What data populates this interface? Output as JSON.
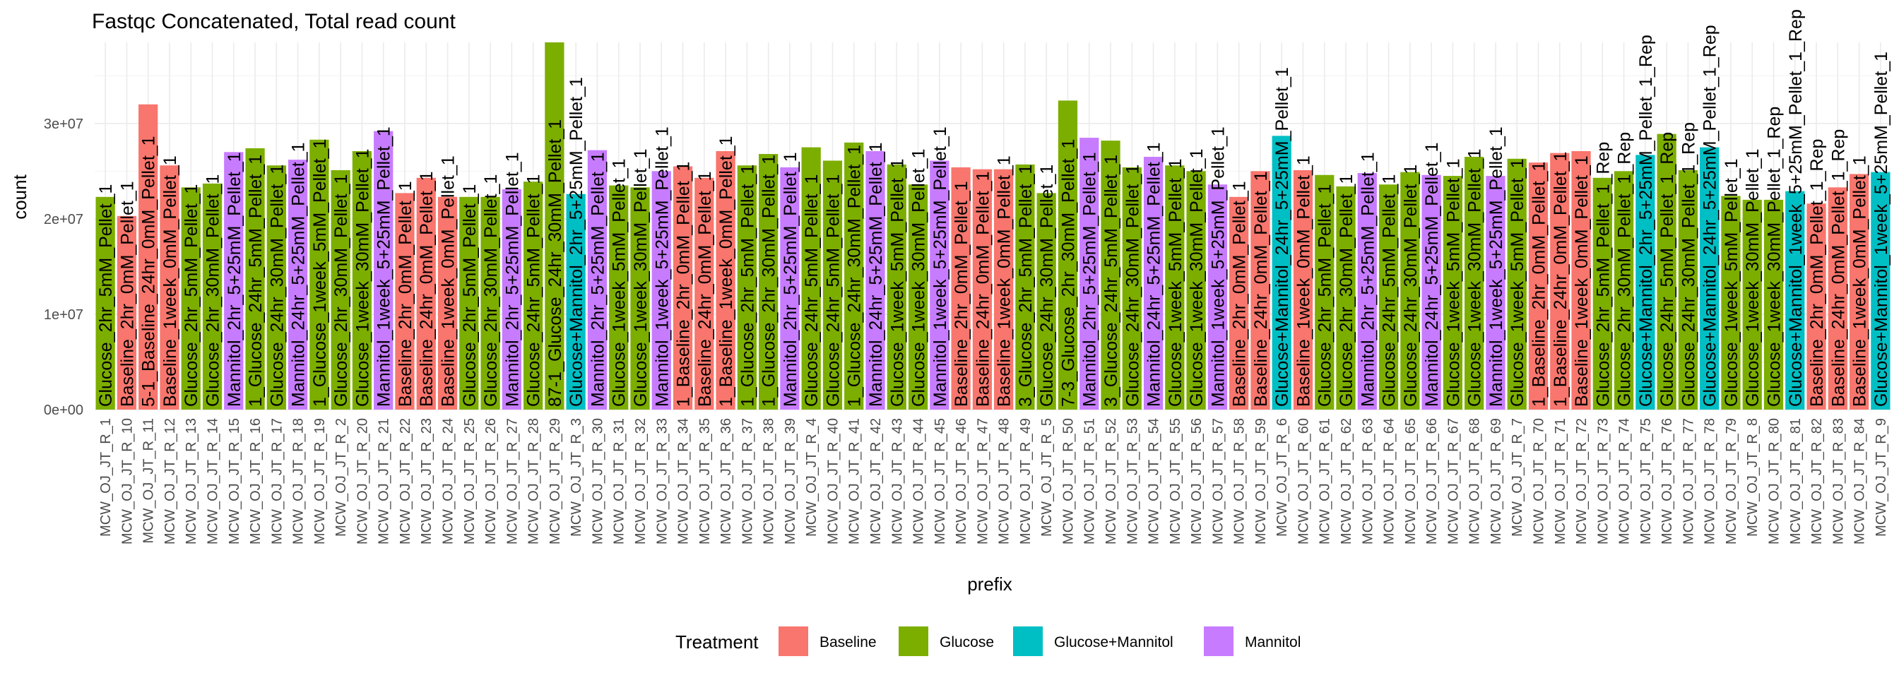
{
  "chart_data": {
    "type": "bar",
    "title": "Fastqc Concatenated, Total read count",
    "xlabel": "prefix",
    "ylabel": "count",
    "ylim": [
      0,
      38500000
    ],
    "yticks": [
      0,
      10000000,
      20000000,
      30000000
    ],
    "ytick_labels": [
      "0e+00",
      "1e+07",
      "2e+07",
      "3e+07"
    ],
    "legend": {
      "title": "Treatment",
      "position": "bottom",
      "entries": [
        {
          "name": "Baseline",
          "color": "#F8766D"
        },
        {
          "name": "Glucose",
          "color": "#7CAE00"
        },
        {
          "name": "Glucose+Mannitol",
          "color": "#00BFC4"
        },
        {
          "name": "Mannitol",
          "color": "#C77CFF"
        }
      ]
    },
    "bars": [
      {
        "x": "MCW_OJ_JT_R_1",
        "value": 22300000,
        "treatment": "Glucose",
        "label": "Glucose_2hr_5mM_Pellet_1"
      },
      {
        "x": "MCW_OJ_JT_R_10",
        "value": 20300000,
        "treatment": "Baseline",
        "label": "Baseline_2hr_0mM_Pellet_1"
      },
      {
        "x": "MCW_OJ_JT_R_11",
        "value": 32000000,
        "treatment": "Baseline",
        "label": "5-1_Baseline_24hr_0mM_Pellet_1"
      },
      {
        "x": "MCW_OJ_JT_R_12",
        "value": 25600000,
        "treatment": "Baseline",
        "label": "Baseline_1week_0mM_Pellet_1"
      },
      {
        "x": "MCW_OJ_JT_R_13",
        "value": 23300000,
        "treatment": "Glucose",
        "label": "Glucose_2hr_5mM_Pellet_1"
      },
      {
        "x": "MCW_OJ_JT_R_14",
        "value": 23700000,
        "treatment": "Glucose",
        "label": "Glucose_2hr_30mM_Pellet_1"
      },
      {
        "x": "MCW_OJ_JT_R_15",
        "value": 27000000,
        "treatment": "Mannitol",
        "label": "Mannitol_2hr_5+25mM_Pellet_1"
      },
      {
        "x": "MCW_OJ_JT_R_16",
        "value": 27400000,
        "treatment": "Glucose",
        "label": "1_Glucose_24hr_5mM_Pellet_1"
      },
      {
        "x": "MCW_OJ_JT_R_17",
        "value": 25600000,
        "treatment": "Glucose",
        "label": "Glucose_24hr_30mM_Pellet_1"
      },
      {
        "x": "MCW_OJ_JT_R_18",
        "value": 26200000,
        "treatment": "Mannitol",
        "label": "Mannitol_24hr_5+25mM_Pellet_1"
      },
      {
        "x": "MCW_OJ_JT_R_19",
        "value": 28300000,
        "treatment": "Glucose",
        "label": "1_Glucose_1week_5mM_Pellet_1"
      },
      {
        "x": "MCW_OJ_JT_R_2",
        "value": 25100000,
        "treatment": "Glucose",
        "label": "Glucose_2hr_30mM_Pellet_1"
      },
      {
        "x": "MCW_OJ_JT_R_20",
        "value": 27100000,
        "treatment": "Glucose",
        "label": "Glucose_1week_30mM_Pellet_1"
      },
      {
        "x": "MCW_OJ_JT_R_21",
        "value": 29200000,
        "treatment": "Mannitol",
        "label": "Mannitol_1week_5+25mM_Pellet_1"
      },
      {
        "x": "MCW_OJ_JT_R_22",
        "value": 22700000,
        "treatment": "Baseline",
        "label": "Baseline_2hr_0mM_Pellet_1"
      },
      {
        "x": "MCW_OJ_JT_R_23",
        "value": 24300000,
        "treatment": "Baseline",
        "label": "Baseline_24hr_0mM_Pellet_1"
      },
      {
        "x": "MCW_OJ_JT_R_24",
        "value": 22300000,
        "treatment": "Baseline",
        "label": "Baseline_1week_0mM_Pellet_1"
      },
      {
        "x": "MCW_OJ_JT_R_25",
        "value": 22300000,
        "treatment": "Glucose",
        "label": "Glucose_2hr_5mM_Pellet_1"
      },
      {
        "x": "MCW_OJ_JT_R_26",
        "value": 22300000,
        "treatment": "Glucose",
        "label": "Glucose_2hr_30mM_Pellet_1"
      },
      {
        "x": "MCW_OJ_JT_R_27",
        "value": 23100000,
        "treatment": "Mannitol",
        "label": "Mannitol_2hr_5+25mM_Pellet_1"
      },
      {
        "x": "MCW_OJ_JT_R_28",
        "value": 23900000,
        "treatment": "Glucose",
        "label": "Glucose_24hr_5mM_Pellet_1"
      },
      {
        "x": "MCW_OJ_JT_R_29",
        "value": 38500000,
        "treatment": "Glucose",
        "label": "87-1_Glucose_24hr_30mM_Pellet_1"
      },
      {
        "x": "MCW_OJ_JT_R_3",
        "value": 22600000,
        "treatment": "Glucose+Mannitol",
        "label": "Glucose+Mannitol_2hr_5+25mM_Pellet_1"
      },
      {
        "x": "MCW_OJ_JT_R_30",
        "value": 27200000,
        "treatment": "Mannitol",
        "label": "Mannitol_2hr_5+25mM_Pellet_1"
      },
      {
        "x": "MCW_OJ_JT_R_31",
        "value": 23500000,
        "treatment": "Glucose",
        "label": "Glucose_1week_5mM_Pellet_1"
      },
      {
        "x": "MCW_OJ_JT_R_32",
        "value": 23300000,
        "treatment": "Glucose",
        "label": "Glucose_1week_30mM_Pellet_1"
      },
      {
        "x": "MCW_OJ_JT_R_33",
        "value": 25000000,
        "treatment": "Mannitol",
        "label": "Mannitol_1week_5+25mM_Pellet_1"
      },
      {
        "x": "MCW_OJ_JT_R_34",
        "value": 25500000,
        "treatment": "Baseline",
        "label": "1_Baseline_2hr_0mM_Pellet_1"
      },
      {
        "x": "MCW_OJ_JT_R_35",
        "value": 24300000,
        "treatment": "Baseline",
        "label": "Baseline_24hr_0mM_Pellet_1"
      },
      {
        "x": "MCW_OJ_JT_R_36",
        "value": 27100000,
        "treatment": "Baseline",
        "label": "1_Baseline_1week_0mM_Pellet_1"
      },
      {
        "x": "MCW_OJ_JT_R_37",
        "value": 25600000,
        "treatment": "Glucose",
        "label": "1_Glucose_2hr_5mM_Pellet_1"
      },
      {
        "x": "MCW_OJ_JT_R_38",
        "value": 26800000,
        "treatment": "Glucose",
        "label": "1_Glucose_2hr_30mM_Pellet_1"
      },
      {
        "x": "MCW_OJ_JT_R_39",
        "value": 25400000,
        "treatment": "Mannitol",
        "label": "Mannitol_2hr_5+25mM_Pellet_1"
      },
      {
        "x": "MCW_OJ_JT_R_4",
        "value": 27500000,
        "treatment": "Glucose",
        "label": "Glucose_24hr_5mM_Pellet_1"
      },
      {
        "x": "MCW_OJ_JT_R_40",
        "value": 26100000,
        "treatment": "Glucose",
        "label": "Glucose_24hr_5mM_Pellet_1"
      },
      {
        "x": "MCW_OJ_JT_R_41",
        "value": 28000000,
        "treatment": "Glucose",
        "label": "1_Glucose_24hr_30mM_Pellet_1"
      },
      {
        "x": "MCW_OJ_JT_R_42",
        "value": 27100000,
        "treatment": "Mannitol",
        "label": "Mannitol_24hr_5+25mM_Pellet_1"
      },
      {
        "x": "MCW_OJ_JT_R_43",
        "value": 25700000,
        "treatment": "Glucose",
        "label": "Glucose_1week_5mM_Pellet_1"
      },
      {
        "x": "MCW_OJ_JT_R_44",
        "value": 23600000,
        "treatment": "Glucose",
        "label": "Glucose_1week_30mM_Pellet_1"
      },
      {
        "x": "MCW_OJ_JT_R_45",
        "value": 26100000,
        "treatment": "Mannitol",
        "label": "Mannitol_1week_5+25mM_Pellet_1"
      },
      {
        "x": "MCW_OJ_JT_R_46",
        "value": 25400000,
        "treatment": "Baseline",
        "label": "Baseline_2hr_0mM_Pellet_1"
      },
      {
        "x": "MCW_OJ_JT_R_47",
        "value": 25200000,
        "treatment": "Baseline",
        "label": "Baseline_24hr_0mM_Pellet_1"
      },
      {
        "x": "MCW_OJ_JT_R_48",
        "value": 25200000,
        "treatment": "Baseline",
        "label": "Baseline_1week_0mM_Pellet_1"
      },
      {
        "x": "MCW_OJ_JT_R_49",
        "value": 25700000,
        "treatment": "Glucose",
        "label": "3_Glucose_2hr_5mM_Pellet_1"
      },
      {
        "x": "MCW_OJ_JT_R_5",
        "value": 22700000,
        "treatment": "Glucose",
        "label": "Glucose_24hr_30mM_Pellet_1"
      },
      {
        "x": "MCW_OJ_JT_R_50",
        "value": 32400000,
        "treatment": "Glucose",
        "label": "7-3_Glucose_2hr_30mM_Pellet_1"
      },
      {
        "x": "MCW_OJ_JT_R_51",
        "value": 28500000,
        "treatment": "Mannitol",
        "label": "Mannitol_2hr_5+25mM_Pellet_1"
      },
      {
        "x": "MCW_OJ_JT_R_52",
        "value": 28200000,
        "treatment": "Glucose",
        "label": "3_Glucose_24hr_5mM_Pellet_1"
      },
      {
        "x": "MCW_OJ_JT_R_53",
        "value": 25400000,
        "treatment": "Glucose",
        "label": "Glucose_24hr_30mM_Pellet_1"
      },
      {
        "x": "MCW_OJ_JT_R_54",
        "value": 26500000,
        "treatment": "Mannitol",
        "label": "Mannitol_24hr_5+25mM_Pellet_1"
      },
      {
        "x": "MCW_OJ_JT_R_55",
        "value": 25600000,
        "treatment": "Glucose",
        "label": "Glucose_1week_5mM_Pellet_1"
      },
      {
        "x": "MCW_OJ_JT_R_56",
        "value": 25000000,
        "treatment": "Glucose",
        "label": "Glucose_1week_30mM_Pellet_1"
      },
      {
        "x": "MCW_OJ_JT_R_57",
        "value": 23600000,
        "treatment": "Mannitol",
        "label": "Mannitol_1week_5+25mM_Pellet_1"
      },
      {
        "x": "MCW_OJ_JT_R_58",
        "value": 22300000,
        "treatment": "Baseline",
        "label": "Baseline_2hr_0mM_Pellet_1"
      },
      {
        "x": "MCW_OJ_JT_R_59",
        "value": 25000000,
        "treatment": "Baseline",
        "label": "Baseline_24hr_0mM_Pellet_1"
      },
      {
        "x": "MCW_OJ_JT_R_6",
        "value": 28700000,
        "treatment": "Glucose+Mannitol",
        "label": "Glucose+Mannitol_24hr_5+25mM_Pellet_1"
      },
      {
        "x": "MCW_OJ_JT_R_60",
        "value": 25100000,
        "treatment": "Baseline",
        "label": "Baseline_1week_0mM_Pellet_1"
      },
      {
        "x": "MCW_OJ_JT_R_61",
        "value": 24600000,
        "treatment": "Glucose",
        "label": "Glucose_2hr_5mM_Pellet_1"
      },
      {
        "x": "MCW_OJ_JT_R_62",
        "value": 23400000,
        "treatment": "Glucose",
        "label": "Glucose_2hr_30mM_Pellet_1"
      },
      {
        "x": "MCW_OJ_JT_R_63",
        "value": 24800000,
        "treatment": "Mannitol",
        "label": "Mannitol_2hr_5+25mM_Pellet_1"
      },
      {
        "x": "MCW_OJ_JT_R_64",
        "value": 23600000,
        "treatment": "Glucose",
        "label": "Glucose_24hr_5mM_Pellet_1"
      },
      {
        "x": "MCW_OJ_JT_R_65",
        "value": 24900000,
        "treatment": "Glucose",
        "label": "Glucose_24hr_30mM_Pellet_1"
      },
      {
        "x": "MCW_OJ_JT_R_66",
        "value": 24600000,
        "treatment": "Mannitol",
        "label": "Mannitol_24hr_5+25mM_Pellet_1"
      },
      {
        "x": "MCW_OJ_JT_R_67",
        "value": 24500000,
        "treatment": "Glucose",
        "label": "Glucose_1week_5mM_Pellet_1"
      },
      {
        "x": "MCW_OJ_JT_R_68",
        "value": 26500000,
        "treatment": "Glucose",
        "label": "Glucose_1week_30mM_Pellet_1"
      },
      {
        "x": "MCW_OJ_JT_R_69",
        "value": 24500000,
        "treatment": "Mannitol",
        "label": "Mannitol_1week_5+25mM_Pellet_1"
      },
      {
        "x": "MCW_OJ_JT_R_7",
        "value": 26300000,
        "treatment": "Glucose",
        "label": "Glucose_1week_5mM_Pellet_1"
      },
      {
        "x": "MCW_OJ_JT_R_70",
        "value": 25900000,
        "treatment": "Baseline",
        "label": "1_Baseline_2hr_0mM_Pellet_1"
      },
      {
        "x": "MCW_OJ_JT_R_71",
        "value": 26900000,
        "treatment": "Baseline",
        "label": "1_Baseline_24hr_0mM_Pellet_1"
      },
      {
        "x": "MCW_OJ_JT_R_72",
        "value": 27100000,
        "treatment": "Baseline",
        "label": "Baseline_1week_0mM_Pellet_1"
      },
      {
        "x": "MCW_OJ_JT_R_73",
        "value": 24300000,
        "treatment": "Glucose",
        "label": "Glucose_2hr_5mM_Pellet_1_Rep"
      },
      {
        "x": "MCW_OJ_JT_R_74",
        "value": 25000000,
        "treatment": "Glucose",
        "label": "Glucose_2hr_30mM_Pellet_1_Rep"
      },
      {
        "x": "MCW_OJ_JT_R_75",
        "value": 26700000,
        "treatment": "Glucose+Mannitol",
        "label": "Glucose+Mannitol_2hr_5+25mM_Pellet_1_Rep"
      },
      {
        "x": "MCW_OJ_JT_R_76",
        "value": 28900000,
        "treatment": "Glucose",
        "label": "Glucose_24hr_5mM_Pellet_1_Rep"
      },
      {
        "x": "MCW_OJ_JT_R_77",
        "value": 25100000,
        "treatment": "Glucose",
        "label": "Glucose_24hr_30mM_Pellet_1_Rep"
      },
      {
        "x": "MCW_OJ_JT_R_78",
        "value": 27500000,
        "treatment": "Glucose+Mannitol",
        "label": "Glucose+Mannitol_24hr_5+25mM_Pellet_1_Rep"
      },
      {
        "x": "MCW_OJ_JT_R_79",
        "value": 22400000,
        "treatment": "Glucose",
        "label": "Glucose_1week_5mM_Pellet_1"
      },
      {
        "x": "MCW_OJ_JT_R_8",
        "value": 22000000,
        "treatment": "Glucose",
        "label": "Glucose_1week_30mM_Pellet_1"
      },
      {
        "x": "MCW_OJ_JT_R_80",
        "value": 22000000,
        "treatment": "Glucose",
        "label": "Glucose_1week_30mM_Pellet_1_Rep"
      },
      {
        "x": "MCW_OJ_JT_R_81",
        "value": 22900000,
        "treatment": "Glucose+Mannitol",
        "label": "Glucose+Mannitol_1week_5+25mM_Pellet_1_Rep"
      },
      {
        "x": "MCW_OJ_JT_R_82",
        "value": 21600000,
        "treatment": "Baseline",
        "label": "Baseline_2hr_0mM_Pellet_1_Rep"
      },
      {
        "x": "MCW_OJ_JT_R_83",
        "value": 23300000,
        "treatment": "Baseline",
        "label": "Baseline_24hr_0mM_Pellet_1_Rep"
      },
      {
        "x": "MCW_OJ_JT_R_84",
        "value": 24700000,
        "treatment": "Baseline",
        "label": "Baseline_1week_0mM_Pellet_1"
      },
      {
        "x": "MCW_OJ_JT_R_9",
        "value": 24900000,
        "treatment": "Glucose+Mannitol",
        "label": "Glucose+Mannitol_1week_5+25mM_Pellet_1"
      }
    ]
  }
}
